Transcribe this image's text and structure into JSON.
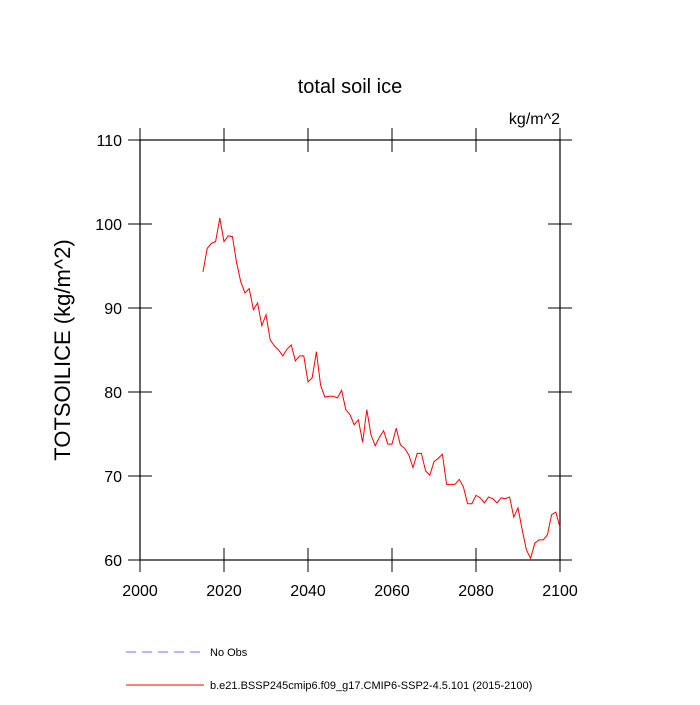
{
  "chart_data": {
    "type": "line",
    "title": "total soil ice",
    "units": "kg/m^2",
    "y_label": "TOTSOILICE  (kg/m^2)",
    "x": [
      2015,
      2016,
      2017,
      2018,
      2019,
      2020,
      2021,
      2022,
      2023,
      2024,
      2025,
      2026,
      2027,
      2028,
      2029,
      2030,
      2031,
      2032,
      2033,
      2034,
      2035,
      2036,
      2037,
      2038,
      2039,
      2040,
      2041,
      2042,
      2043,
      2044,
      2045,
      2046,
      2047,
      2048,
      2049,
      2050,
      2051,
      2052,
      2053,
      2054,
      2055,
      2056,
      2057,
      2058,
      2059,
      2060,
      2061,
      2062,
      2063,
      2064,
      2065,
      2066,
      2067,
      2068,
      2069,
      2070,
      2071,
      2072,
      2073,
      2074,
      2075,
      2076,
      2077,
      2078,
      2079,
      2080,
      2081,
      2082,
      2083,
      2084,
      2085,
      2086,
      2087,
      2088,
      2089,
      2090,
      2091,
      2092,
      2093,
      2094,
      2095,
      2096,
      2097,
      2098,
      2099,
      2100
    ],
    "series": [
      {
        "name": "b.e21.BSSP245cmip6.f09_g17.CMIP6-SSP2-4.5.101 (2015-2100)",
        "color": "#ff0000",
        "values": [
          94.3,
          97.1,
          97.7,
          97.9,
          100.7,
          97.9,
          98.6,
          98.5,
          95.4,
          93.1,
          91.8,
          92.3,
          89.8,
          90.6,
          87.9,
          89.2,
          86.2,
          85.5,
          85.0,
          84.3,
          85.1,
          85.6,
          83.7,
          84.3,
          84.3,
          81.2,
          81.7,
          84.8,
          80.8,
          79.4,
          79.5,
          79.5,
          79.3,
          80.2,
          77.9,
          77.3,
          76.1,
          76.7,
          74.0,
          77.9,
          74.9,
          73.6,
          74.6,
          75.4,
          73.8,
          73.8,
          75.7,
          73.7,
          73.3,
          72.5,
          71.0,
          72.7,
          72.7,
          70.6,
          70.1,
          71.7,
          72.1,
          72.6,
          69.0,
          69.0,
          69.0,
          69.6,
          68.7,
          66.7,
          66.7,
          67.7,
          67.4,
          66.8,
          67.5,
          67.3,
          66.8,
          67.4,
          67.3,
          67.5,
          65.1,
          66.2,
          63.6,
          61.2,
          60.2,
          62.0,
          62.4,
          62.4,
          63.0,
          65.4,
          65.7,
          63.9
        ]
      }
    ],
    "extra_legend": [
      {
        "name": "No Obs",
        "color": "#6f6fff",
        "dashed": true
      }
    ],
    "xlim": [
      2000,
      2100
    ],
    "xticks": [
      2000,
      2020,
      2040,
      2060,
      2080,
      2100
    ],
    "ylim": [
      60,
      110
    ],
    "yticks": [
      60,
      70,
      80,
      90,
      100,
      110
    ]
  }
}
